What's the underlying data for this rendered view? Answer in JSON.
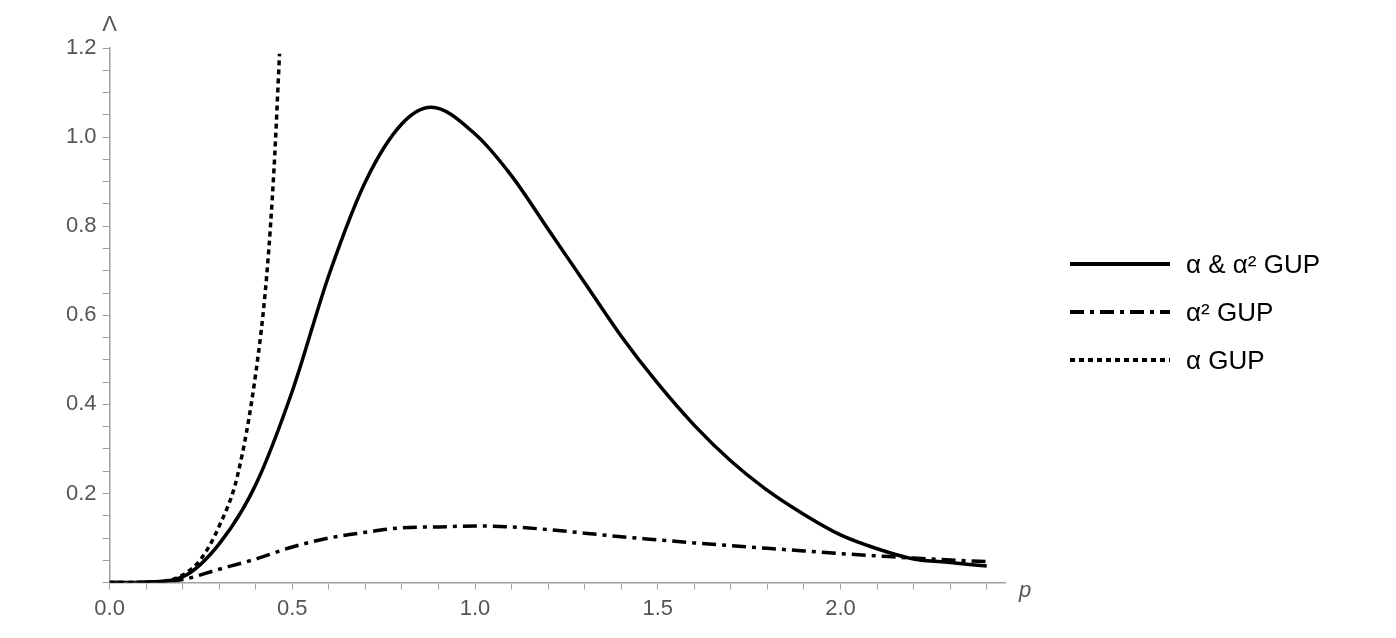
{
  "chart_data": {
    "type": "line",
    "xlabel": "p",
    "ylabel": "Λ",
    "xlim": [
      0,
      2.45
    ],
    "ylim": [
      0,
      1.2
    ],
    "xticks": [
      {
        "value": 0,
        "label": "0.0"
      },
      {
        "value": 0.1,
        "label": null
      },
      {
        "value": 0.2,
        "label": null
      },
      {
        "value": 0.3,
        "label": null
      },
      {
        "value": 0.4,
        "label": null
      },
      {
        "value": 0.5,
        "label": "0.5"
      },
      {
        "value": 0.6,
        "label": null
      },
      {
        "value": 0.7,
        "label": null
      },
      {
        "value": 0.8,
        "label": null
      },
      {
        "value": 0.9,
        "label": null
      },
      {
        "value": 1,
        "label": "1.0"
      },
      {
        "value": 1.1,
        "label": null
      },
      {
        "value": 1.2,
        "label": null
      },
      {
        "value": 1.3,
        "label": null
      },
      {
        "value": 1.4,
        "label": null
      },
      {
        "value": 1.5,
        "label": "1.5"
      },
      {
        "value": 1.6,
        "label": null
      },
      {
        "value": 1.7,
        "label": null
      },
      {
        "value": 1.8,
        "label": null
      },
      {
        "value": 1.9,
        "label": null
      },
      {
        "value": 2,
        "label": "2.0"
      },
      {
        "value": 2.1,
        "label": null
      },
      {
        "value": 2.2,
        "label": null
      },
      {
        "value": 2.3,
        "label": null
      },
      {
        "value": 2.4,
        "label": null
      }
    ],
    "yticks": [
      {
        "value": 0,
        "label": null
      },
      {
        "value": 0.05,
        "label": null
      },
      {
        "value": 0.1,
        "label": null
      },
      {
        "value": 0.15,
        "label": null
      },
      0.2,
      {
        "value": 0.25,
        "label": null
      },
      {
        "value": 0.3,
        "label": null
      },
      {
        "value": 0.35,
        "label": null
      },
      0.4,
      {
        "value": 0.45,
        "label": null
      },
      {
        "value": 0.5,
        "label": null
      },
      {
        "value": 0.55,
        "label": null
      },
      0.6,
      {
        "value": 0.65,
        "label": null
      },
      {
        "value": 0.7,
        "label": null
      },
      {
        "value": 0.75,
        "label": null
      },
      0.8,
      {
        "value": 0.85,
        "label": null
      },
      {
        "value": 0.9,
        "label": null
      },
      {
        "value": 0.95,
        "label": null
      },
      {
        "value": 1,
        "label": "1.0"
      },
      {
        "value": 1.05,
        "label": null
      },
      {
        "value": 1.1,
        "label": null
      },
      {
        "value": 1.15,
        "label": null
      },
      1.2
    ],
    "grid": false,
    "legend": "right",
    "marker": "none",
    "series": [
      {
        "name": "α & α² GUP",
        "color": "#000000",
        "line_style": "solid",
        "x": [
          0,
          0.1,
          0.2,
          0.3,
          0.4,
          0.5,
          0.6,
          0.7,
          0.8,
          0.88,
          1,
          1.1,
          1.2,
          1.3,
          1.4,
          1.5,
          1.6,
          1.7,
          1.8,
          1.9,
          2,
          2.1,
          2.2,
          2.3,
          2.4
        ],
        "values": [
          0,
          0.001,
          0.013,
          0.087,
          0.22,
          0.43,
          0.69,
          0.9,
          1.03,
          1.067,
          1.007,
          0.913,
          0.793,
          0.673,
          0.553,
          0.447,
          0.353,
          0.273,
          0.207,
          0.153,
          0.107,
          0.076,
          0.053,
          0.045,
          0.037
        ]
      },
      {
        "name": "α² GUP",
        "color": "#000000",
        "line_style": "dashdot",
        "x": [
          0,
          0.1,
          0.2,
          0.3,
          0.4,
          0.5,
          0.6,
          0.7,
          0.8,
          0.9,
          1,
          1.1,
          1.2,
          1.3,
          1.4,
          1.5,
          1.6,
          1.7,
          1.8,
          1.9,
          2,
          2.1,
          2.2,
          2.3,
          2.4
        ],
        "values": [
          0,
          0.001,
          0.007,
          0.03,
          0.053,
          0.08,
          0.1,
          0.113,
          0.123,
          0.125,
          0.127,
          0.125,
          0.119,
          0.111,
          0.103,
          0.096,
          0.089,
          0.083,
          0.077,
          0.071,
          0.065,
          0.06,
          0.055,
          0.051,
          0.047
        ]
      },
      {
        "name": "α GUP",
        "color": "#000000",
        "line_style": "dotted",
        "x": [
          0,
          0.1,
          0.15,
          0.2,
          0.25,
          0.3,
          0.35,
          0.4,
          0.43,
          0.45,
          0.465
        ],
        "values": [
          0,
          0.001,
          0.003,
          0.017,
          0.053,
          0.127,
          0.24,
          0.47,
          0.69,
          0.93,
          1.187
        ]
      }
    ]
  }
}
